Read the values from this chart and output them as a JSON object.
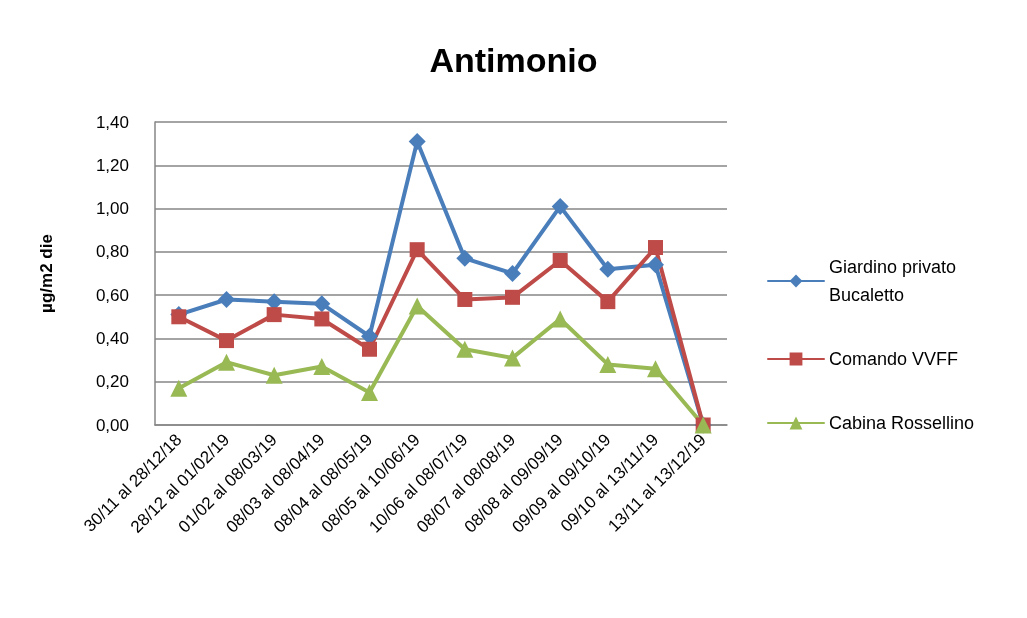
{
  "chart_data": {
    "type": "line",
    "title": "Antimonio",
    "ylabel": "µg/m2 die",
    "categories": [
      "30/11 al 28/12/18",
      "28/12 al 01/02/19",
      "01/02 al 08/03/19",
      "08/03 al 08/04/19",
      "08/04 al 08/05/19",
      "08/05 al 10/06/19",
      "10/06 al 08/07/19",
      "08/07 al 08/08/19",
      "08/08 al 09/09/19",
      "09/09 al 09/10/19",
      "09/10 al 13/11/19",
      "13/11 al 13/12/19"
    ],
    "series": [
      {
        "name": "Giardino privato Bucaletto",
        "color": "#4a7ebb",
        "marker": "diamond",
        "values": [
          0.51,
          0.58,
          0.57,
          0.56,
          0.41,
          1.31,
          0.77,
          0.7,
          1.01,
          0.72,
          0.74,
          0
        ]
      },
      {
        "name": "Comando VVFF",
        "color": "#be4b48",
        "marker": "square",
        "values": [
          0.5,
          0.39,
          0.51,
          0.49,
          0.35,
          0.81,
          0.58,
          0.59,
          0.76,
          0.57,
          0.82,
          0
        ]
      },
      {
        "name": "Cabina Rossellino",
        "color": "#98b954",
        "marker": "triangle",
        "values": [
          0.17,
          0.29,
          0.23,
          0.27,
          0.15,
          0.55,
          0.35,
          0.31,
          0.49,
          0.28,
          0.26,
          0
        ]
      }
    ],
    "ylim": [
      0,
      1.4
    ],
    "yticks": [
      {
        "value": 0,
        "label": "0,00"
      },
      {
        "value": 0.2,
        "label": "0,20"
      },
      {
        "value": 0.4,
        "label": "0,40"
      },
      {
        "value": 0.6,
        "label": "0,60"
      },
      {
        "value": 0.8,
        "label": "0,80"
      },
      {
        "value": 1.0,
        "label": "1,00"
      },
      {
        "value": 1.2,
        "label": "1,20"
      },
      {
        "value": 1.4,
        "label": "1,40"
      }
    ],
    "grid": "y",
    "legend": "right",
    "line_style": "solid"
  }
}
